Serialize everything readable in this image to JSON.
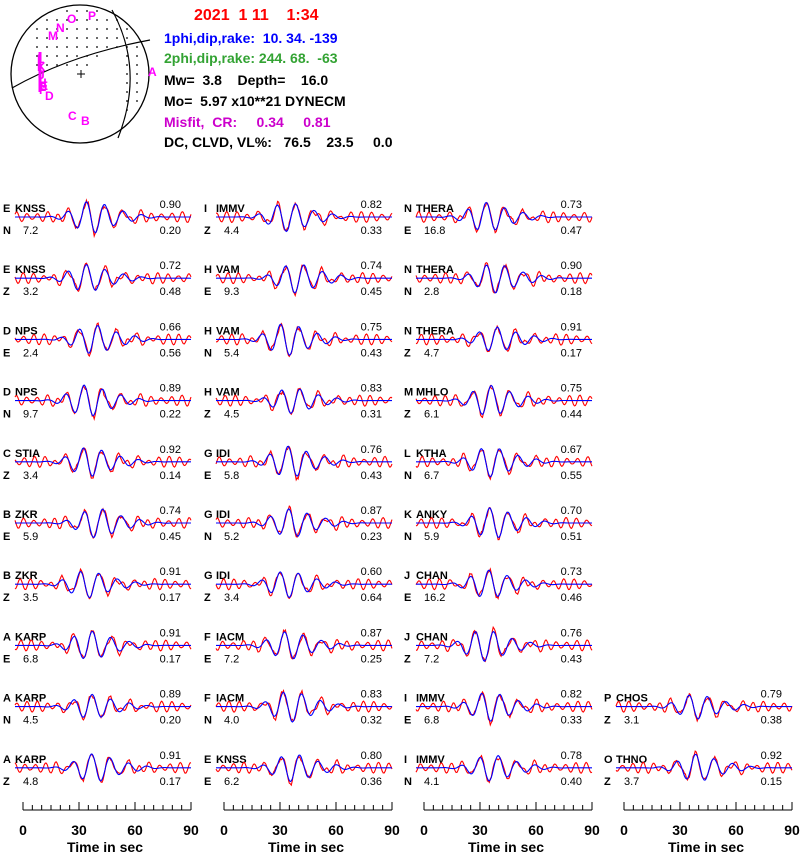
{
  "header": {
    "date": "2021  1 11    1:34",
    "plane1": "1phi,dip,rake:  10. 34. -139",
    "plane2": "2phi,dip,rake: 244. 68.  -63",
    "mw_depth": "Mw=  3.8    Depth=    16.0",
    "moment": "Mo=  5.97 x10**21 DYNECM",
    "misfit": "Misfit,  CR:     0.34     0.81",
    "dc_clvd": "DC, CLVD, VL%:   76.5    23.5     0.0"
  },
  "colors": {
    "observed": "#ff0000",
    "synthetic": "#0000ff",
    "station_letters": "#ff00ff",
    "date": "#ff0000",
    "plane1": "#0000ff",
    "plane2": "#33a333",
    "misfit": "#cc00cc"
  },
  "beachball": {
    "station_labels": [
      "P",
      "O",
      "N",
      "M",
      "L",
      "K",
      "J",
      "I",
      "H",
      "G",
      "F",
      "E",
      "D",
      "C",
      "B",
      "A"
    ]
  },
  "chart_data": {
    "type": "line",
    "xlabel": "Time  in sec",
    "xlim": [
      0,
      90
    ],
    "x_ticks": [
      "0",
      "30",
      "60",
      "90"
    ],
    "series_legend": {
      "observed": "red",
      "synthetic": "blue"
    },
    "columns": [
      [
        {
          "letter": "E",
          "station": "KNSS",
          "comp": "N",
          "shift": "7.2",
          "cc": "0.90",
          "vr": "0.20"
        },
        {
          "letter": "E",
          "station": "KNSS",
          "comp": "Z",
          "shift": "3.2",
          "cc": "0.72",
          "vr": "0.48"
        },
        {
          "letter": "D",
          "station": "NPS",
          "comp": "E",
          "shift": "2.4",
          "cc": "0.66",
          "vr": "0.56"
        },
        {
          "letter": "D",
          "station": "NPS",
          "comp": "N",
          "shift": "9.7",
          "cc": "0.89",
          "vr": "0.22"
        },
        {
          "letter": "C",
          "station": "STIA",
          "comp": "Z",
          "shift": "3.4",
          "cc": "0.92",
          "vr": "0.14"
        },
        {
          "letter": "B",
          "station": "ZKR",
          "comp": "E",
          "shift": "5.9",
          "cc": "0.74",
          "vr": "0.45"
        },
        {
          "letter": "B",
          "station": "ZKR",
          "comp": "Z",
          "shift": "3.5",
          "cc": "0.91",
          "vr": "0.17"
        },
        {
          "letter": "A",
          "station": "KARP",
          "comp": "E",
          "shift": "6.8",
          "cc": "0.91",
          "vr": "0.17"
        },
        {
          "letter": "A",
          "station": "KARP",
          "comp": "N",
          "shift": "4.5",
          "cc": "0.89",
          "vr": "0.20"
        },
        {
          "letter": "A",
          "station": "KARP",
          "comp": "Z",
          "shift": "4.8",
          "cc": "0.91",
          "vr": "0.17"
        }
      ],
      [
        {
          "letter": "I",
          "station": "IMMV",
          "comp": "Z",
          "shift": "4.4",
          "cc": "0.82",
          "vr": "0.33"
        },
        {
          "letter": "H",
          "station": "VAM",
          "comp": "E",
          "shift": "9.3",
          "cc": "0.74",
          "vr": "0.45"
        },
        {
          "letter": "H",
          "station": "VAM",
          "comp": "N",
          "shift": "5.4",
          "cc": "0.75",
          "vr": "0.43"
        },
        {
          "letter": "H",
          "station": "VAM",
          "comp": "Z",
          "shift": "4.5",
          "cc": "0.83",
          "vr": "0.31"
        },
        {
          "letter": "G",
          "station": "IDI",
          "comp": "E",
          "shift": "5.8",
          "cc": "0.76",
          "vr": "0.43"
        },
        {
          "letter": "G",
          "station": "IDI",
          "comp": "N",
          "shift": "5.2",
          "cc": "0.87",
          "vr": "0.23"
        },
        {
          "letter": "G",
          "station": "IDI",
          "comp": "Z",
          "shift": "3.4",
          "cc": "0.60",
          "vr": "0.64"
        },
        {
          "letter": "F",
          "station": "IACM",
          "comp": "E",
          "shift": "7.2",
          "cc": "0.87",
          "vr": "0.25"
        },
        {
          "letter": "F",
          "station": "IACM",
          "comp": "N",
          "shift": "4.0",
          "cc": "0.83",
          "vr": "0.32"
        },
        {
          "letter": "E",
          "station": "KNSS",
          "comp": "E",
          "shift": "6.2",
          "cc": "0.80",
          "vr": "0.36"
        }
      ],
      [
        {
          "letter": "N",
          "station": "THERA",
          "comp": "E",
          "shift": "16.8",
          "cc": "0.73",
          "vr": "0.47"
        },
        {
          "letter": "N",
          "station": "THERA",
          "comp": "N",
          "shift": "2.8",
          "cc": "0.90",
          "vr": "0.18"
        },
        {
          "letter": "N",
          "station": "THERA",
          "comp": "Z",
          "shift": "4.7",
          "cc": "0.91",
          "vr": "0.17"
        },
        {
          "letter": "M",
          "station": "MHLO",
          "comp": "Z",
          "shift": "6.1",
          "cc": "0.75",
          "vr": "0.44"
        },
        {
          "letter": "L",
          "station": "KTHA",
          "comp": "N",
          "shift": "6.7",
          "cc": "0.67",
          "vr": "0.55"
        },
        {
          "letter": "K",
          "station": "ANKY",
          "comp": "N",
          "shift": "5.9",
          "cc": "0.70",
          "vr": "0.51"
        },
        {
          "letter": "J",
          "station": "CHAN",
          "comp": "E",
          "shift": "16.2",
          "cc": "0.73",
          "vr": "0.46"
        },
        {
          "letter": "J",
          "station": "CHAN",
          "comp": "Z",
          "shift": "7.2",
          "cc": "0.76",
          "vr": "0.43"
        },
        {
          "letter": "I",
          "station": "IMMV",
          "comp": "E",
          "shift": "6.8",
          "cc": "0.82",
          "vr": "0.33"
        },
        {
          "letter": "I",
          "station": "IMMV",
          "comp": "N",
          "shift": "4.1",
          "cc": "0.78",
          "vr": "0.40"
        }
      ],
      [
        null,
        null,
        null,
        null,
        null,
        null,
        null,
        null,
        {
          "letter": "P",
          "station": "CHOS",
          "comp": "Z",
          "shift": "3.1",
          "cc": "0.79",
          "vr": "0.38"
        },
        {
          "letter": "O",
          "station": "THNO",
          "comp": "Z",
          "shift": "3.7",
          "cc": "0.92",
          "vr": "0.15"
        }
      ]
    ]
  }
}
